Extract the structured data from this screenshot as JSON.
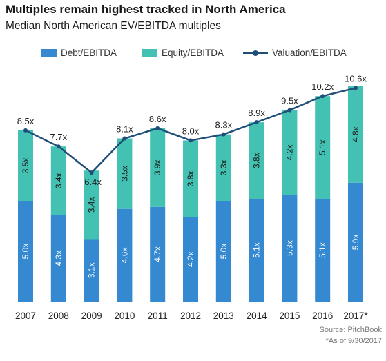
{
  "title": "Multiples remain highest tracked in North America",
  "subtitle": "Median North American EV/EBITDA multiples",
  "source": "Source: PitchBook",
  "footnote": "*As of 9/30/2017",
  "colors": {
    "debt": "#3489d0",
    "equity": "#43c1b2",
    "valuation": "#1f4e79",
    "axis": "#555555"
  },
  "chart_data": {
    "type": "bar",
    "stacked": true,
    "categories": [
      "2007",
      "2008",
      "2009",
      "2010",
      "2011",
      "2012",
      "2013",
      "2014",
      "2015",
      "2016",
      "2017*"
    ],
    "series": [
      {
        "name": "Debt/EBITDA",
        "type": "bar",
        "values": [
          5.0,
          4.3,
          3.1,
          4.6,
          4.7,
          4.2,
          5.0,
          5.1,
          5.3,
          5.1,
          5.9
        ],
        "labels": [
          "5.0x",
          "4.3x",
          "3.1x",
          "4.6x",
          "4.7x",
          "4.2x",
          "5.0x",
          "5.1x",
          "5.3x",
          "5.1x",
          "5.9x"
        ]
      },
      {
        "name": "Equity/EBITDA",
        "type": "bar",
        "values": [
          3.5,
          3.4,
          3.4,
          3.5,
          3.9,
          3.8,
          3.3,
          3.8,
          4.2,
          5.1,
          4.8
        ],
        "labels": [
          "3.5x",
          "3.4x",
          "3.4x",
          "3.5x",
          "3.9x",
          "3.8x",
          "3.3x",
          "3.8x",
          "4.2x",
          "5.1x",
          "4.8x"
        ]
      },
      {
        "name": "Valuation/EBITDA",
        "type": "line",
        "values": [
          8.5,
          7.7,
          6.4,
          8.1,
          8.6,
          8.0,
          8.3,
          8.9,
          9.5,
          10.2,
          10.6
        ],
        "labels": [
          "8.5x",
          "7.7x",
          "6.4x",
          "8.1x",
          "8.6x",
          "8.0x",
          "8.3x",
          "8.9x",
          "9.5x",
          "10.2x",
          "10.6x"
        ]
      }
    ],
    "ylim": [
      0,
      11.2
    ],
    "grid": false,
    "legend": "top"
  }
}
